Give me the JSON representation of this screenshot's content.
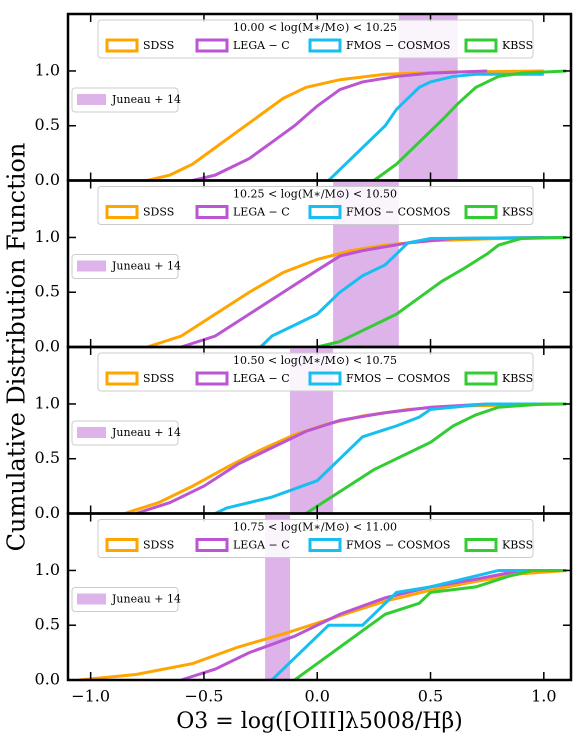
{
  "chart_data": [
    {
      "type": "line",
      "title": "10.00 < log(M∗/M⊙) < 10.25",
      "ylabel": "Cumulative Distribution Function",
      "xlim": [
        -1.1,
        1.12
      ],
      "ylim": [
        0,
        1.52
      ],
      "xticks": [
        {
          "value": -1.0,
          "label": "−1.0"
        },
        {
          "value": -0.5,
          "label": "−0.5"
        },
        {
          "value": 0.0,
          "label": "0.0"
        },
        {
          "value": 0.5,
          "label": "0.5"
        },
        {
          "value": 1.0,
          "label": "1.0"
        }
      ],
      "yticks": [
        {
          "value": 0,
          "label": "0.0"
        },
        {
          "value": 0.5,
          "label": "0.5"
        },
        {
          "value": 1.0,
          "label": "1.0"
        }
      ],
      "span": {
        "name": "Juneau + 14",
        "color": "#ddb3ea",
        "range": [
          0.36,
          0.62
        ]
      },
      "series": [
        {
          "name": "SDSS",
          "color": "#ffa500",
          "x": [
            -0.75,
            -0.65,
            -0.55,
            -0.45,
            -0.35,
            -0.25,
            -0.15,
            -0.05,
            0.1,
            0.3,
            0.6,
            1.0
          ],
          "values": [
            0,
            0.05,
            0.15,
            0.3,
            0.45,
            0.6,
            0.75,
            0.85,
            0.92,
            0.97,
            0.99,
            1.0
          ]
        },
        {
          "name": "LEGA − C",
          "color": "#bb55d3",
          "x": [
            -0.55,
            -0.45,
            -0.3,
            -0.2,
            -0.1,
            0.0,
            0.1,
            0.2,
            0.35,
            0.5,
            0.75
          ],
          "values": [
            0,
            0.05,
            0.2,
            0.35,
            0.5,
            0.68,
            0.83,
            0.9,
            0.95,
            0.98,
            1.0
          ]
        },
        {
          "name": "FMOS − COSMOS",
          "color": "#16bff0",
          "x": [
            0.05,
            0.1,
            0.2,
            0.3,
            0.35,
            0.45,
            0.5,
            0.6,
            0.7,
            1.0
          ],
          "values": [
            0,
            0.1,
            0.3,
            0.5,
            0.65,
            0.85,
            0.9,
            0.95,
            0.97,
            0.97
          ]
        },
        {
          "name": "KBSS",
          "color": "#33cc33",
          "x": [
            0.25,
            0.35,
            0.45,
            0.55,
            0.62,
            0.7,
            0.8,
            0.9,
            1.1
          ],
          "values": [
            0,
            0.15,
            0.35,
            0.55,
            0.7,
            0.85,
            0.95,
            0.98,
            1.0
          ]
        }
      ]
    },
    {
      "type": "line",
      "title": "10.25 < log(M∗/M⊙) < 10.50",
      "xlim": [
        -1.1,
        1.12
      ],
      "ylim": [
        0,
        1.52
      ],
      "xticks": [
        {
          "value": -1.0,
          "label": "−1.0"
        },
        {
          "value": -0.5,
          "label": "−0.5"
        },
        {
          "value": 0.0,
          "label": "0.0"
        },
        {
          "value": 0.5,
          "label": "0.5"
        },
        {
          "value": 1.0,
          "label": "1.0"
        }
      ],
      "yticks": [
        {
          "value": 0,
          "label": "0.0"
        },
        {
          "value": 0.5,
          "label": "0.5"
        },
        {
          "value": 1.0,
          "label": "1.0"
        }
      ],
      "span": {
        "name": "Juneau + 14",
        "color": "#ddb3ea",
        "range": [
          0.07,
          0.36
        ]
      },
      "series": [
        {
          "name": "SDSS",
          "color": "#ffa500",
          "x": [
            -0.75,
            -0.6,
            -0.45,
            -0.3,
            -0.15,
            0,
            0.15,
            0.3,
            0.5,
            0.8,
            1.1
          ],
          "values": [
            0,
            0.1,
            0.3,
            0.5,
            0.68,
            0.8,
            0.88,
            0.93,
            0.97,
            0.99,
            1.0
          ]
        },
        {
          "name": "LEGA − C",
          "color": "#bb55d3",
          "x": [
            -0.6,
            -0.45,
            -0.3,
            -0.15,
            0,
            0.1,
            0.2,
            0.4,
            0.6,
            1.0
          ],
          "values": [
            0,
            0.1,
            0.3,
            0.5,
            0.7,
            0.83,
            0.88,
            0.95,
            0.99,
            1.0
          ]
        },
        {
          "name": "FMOS − COSMOS",
          "color": "#16bff0",
          "x": [
            -0.25,
            -0.2,
            -0.1,
            0,
            0.1,
            0.2,
            0.3,
            0.35,
            0.4,
            0.5,
            1.1
          ],
          "values": [
            0,
            0.1,
            0.2,
            0.3,
            0.5,
            0.65,
            0.75,
            0.85,
            0.95,
            0.99,
            1.0
          ]
        },
        {
          "name": "KBSS",
          "color": "#33cc33",
          "x": [
            0,
            0.1,
            0.2,
            0.35,
            0.45,
            0.55,
            0.65,
            0.75,
            0.8,
            0.9,
            1.1
          ],
          "values": [
            0,
            0.05,
            0.15,
            0.3,
            0.45,
            0.6,
            0.72,
            0.85,
            0.93,
            0.99,
            1.0
          ]
        }
      ]
    },
    {
      "type": "line",
      "title": "10.50 < log(M∗/M⊙) < 10.75",
      "xlim": [
        -1.1,
        1.12
      ],
      "ylim": [
        0,
        1.52
      ],
      "xticks": [
        {
          "value": -1.0,
          "label": "−1.0"
        },
        {
          "value": -0.5,
          "label": "−0.5"
        },
        {
          "value": 0.0,
          "label": "0.0"
        },
        {
          "value": 0.5,
          "label": "0.5"
        },
        {
          "value": 1.0,
          "label": "1.0"
        }
      ],
      "yticks": [
        {
          "value": 0,
          "label": "0.0"
        },
        {
          "value": 0.5,
          "label": "0.5"
        },
        {
          "value": 1.0,
          "label": "1.0"
        }
      ],
      "span": {
        "name": "Juneau + 14",
        "color": "#ddb3ea",
        "range": [
          -0.12,
          0.07
        ]
      },
      "series": [
        {
          "name": "SDSS",
          "color": "#ffa500",
          "x": [
            -0.85,
            -0.7,
            -0.55,
            -0.4,
            -0.25,
            -0.1,
            0.05,
            0.2,
            0.4,
            0.6,
            1.1
          ],
          "values": [
            0,
            0.1,
            0.25,
            0.42,
            0.58,
            0.72,
            0.82,
            0.89,
            0.95,
            0.98,
            1.0
          ]
        },
        {
          "name": "LEGA − C",
          "color": "#bb55d3",
          "x": [
            -0.8,
            -0.65,
            -0.5,
            -0.35,
            -0.2,
            -0.05,
            0.1,
            0.3,
            0.5,
            0.75,
            1.1
          ],
          "values": [
            0,
            0.1,
            0.25,
            0.45,
            0.6,
            0.75,
            0.85,
            0.92,
            0.97,
            1.0,
            1.0
          ]
        },
        {
          "name": "FMOS − COSMOS",
          "color": "#16bff0",
          "x": [
            -0.45,
            -0.4,
            -0.2,
            0.0,
            0.1,
            0.2,
            0.35,
            0.45,
            0.5,
            0.75,
            1.1
          ],
          "values": [
            0,
            0.05,
            0.15,
            0.3,
            0.5,
            0.7,
            0.8,
            0.88,
            0.95,
            1.0,
            1.0
          ]
        },
        {
          "name": "KBSS",
          "color": "#33cc33",
          "x": [
            -0.05,
            0.1,
            0.25,
            0.4,
            0.5,
            0.6,
            0.7,
            0.8,
            1.0,
            1.1
          ],
          "values": [
            0,
            0.2,
            0.4,
            0.55,
            0.65,
            0.8,
            0.9,
            0.97,
            1.0,
            1.0
          ]
        }
      ]
    },
    {
      "type": "line",
      "title": "10.75 < log(M∗/M⊙) < 11.00",
      "xlabel": "O3 = log([OIII]λ5008/Hβ)",
      "xlim": [
        -1.1,
        1.12
      ],
      "ylim": [
        0,
        1.52
      ],
      "xticks": [
        {
          "value": -1.0,
          "label": "−1.0"
        },
        {
          "value": -0.5,
          "label": "−0.5"
        },
        {
          "value": 0.0,
          "label": "0.0"
        },
        {
          "value": 0.5,
          "label": "0.5"
        },
        {
          "value": 1.0,
          "label": "1.0"
        }
      ],
      "yticks": [
        {
          "value": 0,
          "label": "0.0"
        },
        {
          "value": 0.5,
          "label": "0.5"
        },
        {
          "value": 1.0,
          "label": "1.0"
        }
      ],
      "span": {
        "name": "Juneau + 14",
        "color": "#ddb3ea",
        "range": [
          -0.23,
          -0.12
        ]
      },
      "series": [
        {
          "name": "SDSS",
          "color": "#ffa500",
          "x": [
            -1.05,
            -0.8,
            -0.55,
            -0.35,
            -0.15,
            0.0,
            0.15,
            0.3,
            0.5,
            0.7,
            0.9,
            1.1
          ],
          "values": [
            0,
            0.05,
            0.15,
            0.3,
            0.42,
            0.52,
            0.62,
            0.72,
            0.82,
            0.9,
            0.97,
            1.0
          ]
        },
        {
          "name": "LEGA − C",
          "color": "#bb55d3",
          "x": [
            -0.6,
            -0.45,
            -0.3,
            -0.1,
            0.1,
            0.3,
            0.5,
            0.7,
            0.9,
            1.1
          ],
          "values": [
            0,
            0.1,
            0.25,
            0.4,
            0.6,
            0.75,
            0.85,
            0.92,
            1.0,
            1.0
          ]
        },
        {
          "name": "FMOS − COSMOS",
          "color": "#16bff0",
          "x": [
            -0.2,
            -0.1,
            0,
            0.05,
            0.2,
            0.25,
            0.3,
            0.35,
            0.5,
            0.7,
            0.8,
            1.1
          ],
          "values": [
            0,
            0.2,
            0.4,
            0.5,
            0.5,
            0.6,
            0.7,
            0.8,
            0.85,
            0.95,
            1.0,
            1.0
          ]
        },
        {
          "name": "KBSS",
          "color": "#33cc33",
          "x": [
            -0.1,
            0,
            0.1,
            0.2,
            0.3,
            0.45,
            0.5,
            0.7,
            0.85,
            0.95,
            1.1
          ],
          "values": [
            0,
            0.15,
            0.3,
            0.45,
            0.6,
            0.7,
            0.8,
            0.85,
            0.95,
            1.0,
            1.0
          ]
        }
      ]
    }
  ]
}
